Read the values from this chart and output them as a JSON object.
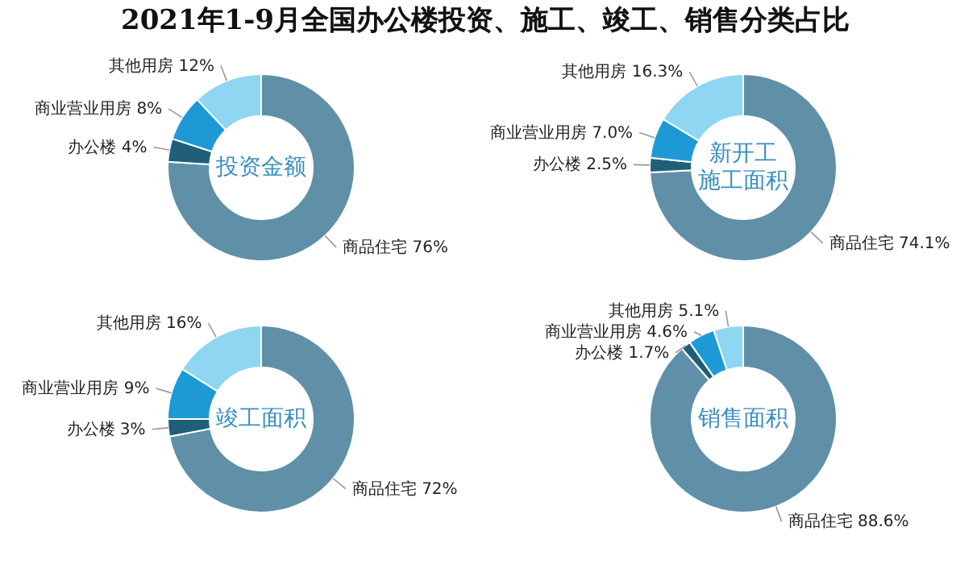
{
  "chart_data": [
    {
      "type": "donut",
      "title": "投资金额",
      "annotations": [
        "2021年1-9月全国办公楼投资、施工、竣工、销售分类占比"
      ],
      "categories": [
        "商品住宅",
        "办公楼",
        "商业营业用房",
        "其他用房"
      ],
      "values": [
        76,
        4,
        8,
        12
      ],
      "value_labels": [
        "76%",
        "4%",
        "8%",
        "12%"
      ],
      "colors": [
        "#5f90a8",
        "#1f5f7a",
        "#1d9ad6",
        "#8ed6f2"
      ],
      "legend": false
    },
    {
      "type": "donut",
      "title": "新开工施工面积",
      "categories": [
        "商品住宅",
        "办公楼",
        "商业营业用房",
        "其他用房"
      ],
      "values": [
        74.1,
        2.5,
        7.0,
        16.3
      ],
      "value_labels": [
        "74.1%",
        "2.5%",
        "7.0%",
        "16.3%"
      ],
      "colors": [
        "#5f90a8",
        "#1f5f7a",
        "#1d9ad6",
        "#8ed6f2"
      ],
      "legend": false
    },
    {
      "type": "donut",
      "title": "竣工面积",
      "categories": [
        "商品住宅",
        "办公楼",
        "商业营业用房",
        "其他用房"
      ],
      "values": [
        72,
        3,
        9,
        16
      ],
      "value_labels": [
        "72%",
        "3%",
        "9%",
        "16%"
      ],
      "colors": [
        "#5f90a8",
        "#1f5f7a",
        "#1d9ad6",
        "#8ed6f2"
      ],
      "legend": false
    },
    {
      "type": "donut",
      "title": "销售面积",
      "categories": [
        "商品住宅",
        "办公楼",
        "商业营业用房",
        "其他用房"
      ],
      "values": [
        88.6,
        1.7,
        4.6,
        5.1
      ],
      "value_labels": [
        "88.6%",
        "1.7%",
        "4.6%",
        "5.1%"
      ],
      "colors": [
        "#5f90a8",
        "#1f5f7a",
        "#1d9ad6",
        "#8ed6f2"
      ],
      "legend": false
    }
  ]
}
